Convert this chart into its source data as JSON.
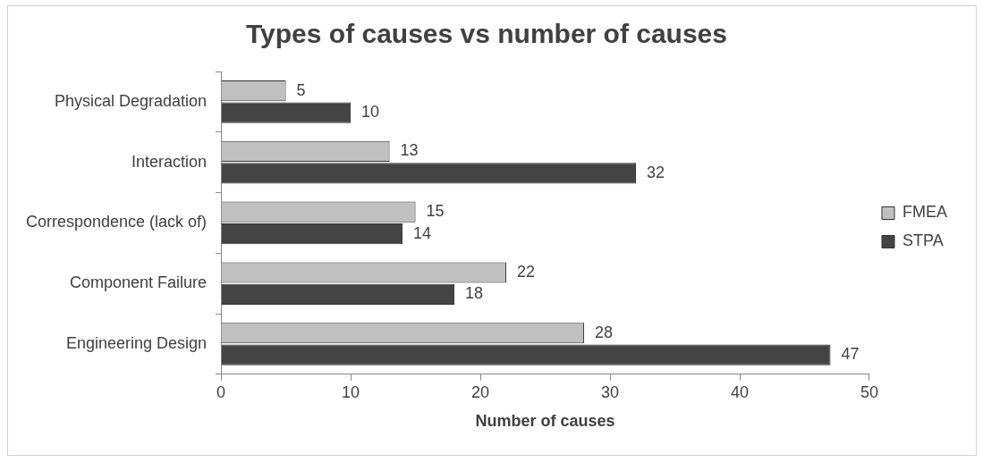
{
  "chart_data": {
    "type": "bar",
    "orientation": "horizontal",
    "title": "Types of causes vs number of causes",
    "xlabel": "Number of causes",
    "categories": [
      "Physical Degradation",
      "Interaction",
      "Correspondence (lack of)",
      "Component Failure",
      "Engineering Design"
    ],
    "series": [
      {
        "name": "FMEA",
        "color": "#c0c0c0",
        "values": [
          5,
          13,
          15,
          22,
          28
        ]
      },
      {
        "name": "STPA",
        "color": "#444444",
        "values": [
          10,
          32,
          14,
          18,
          47
        ]
      }
    ],
    "xlim": [
      0,
      50
    ],
    "xticks": [
      0,
      10,
      20,
      30,
      40,
      50
    ],
    "data_labels": true,
    "legend": "right"
  }
}
